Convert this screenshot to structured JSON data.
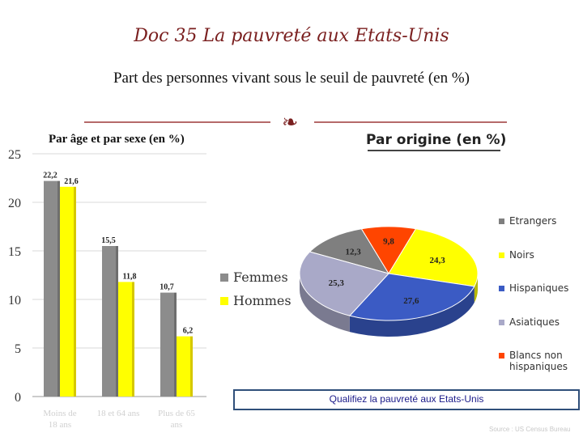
{
  "header": {
    "doc_title": "Doc 35 La pauvreté aux Etats-Unis",
    "subtitle": "Part des personnes vivant sous le seuil de pauvreté (en %)"
  },
  "colors": {
    "femmes": "#8c8c8c",
    "hommes": "#ffff00",
    "etrangers": "#7f7f7f",
    "noirs": "#ffff00",
    "hispaniques": "#3b5bc4",
    "asiatiques": "#a9a9c8",
    "blancs": "#ff4500",
    "accent": "#7a1f1f"
  },
  "icons": {
    "divider": "scroll-ornament-icon"
  },
  "question": "Qualifiez la pauvreté aux Etats-Unis",
  "source": "Source : US Census Bureau",
  "chart_data": [
    {
      "type": "bar",
      "title": "Par âge et par sexe (en %)",
      "categories": [
        "Moins de 18 ans",
        "18 et 64 ans",
        "Plus de 65 ans"
      ],
      "category_labels": [
        [
          "Moins de",
          "18 ans"
        ],
        [
          "18 et 64 ans",
          ""
        ],
        [
          "Plus de 65",
          "ans"
        ]
      ],
      "series": [
        {
          "name": "Femmes",
          "values": [
            22.2,
            15.5,
            10.7
          ],
          "labels": [
            "22,2",
            "15,5",
            "10,7"
          ]
        },
        {
          "name": "Hommes",
          "values": [
            21.6,
            11.8,
            6.2
          ],
          "labels": [
            "21,6",
            "11,8",
            "6,2"
          ]
        }
      ],
      "yticks": [
        "0",
        "5",
        "10",
        "15",
        "20",
        "25"
      ],
      "ylim": [
        0,
        25
      ],
      "grid": true,
      "legend": "right"
    },
    {
      "type": "pie",
      "title": "Par origine (en %)",
      "slices": [
        {
          "name": "Etrangers",
          "value": 12.3,
          "label": "12,3"
        },
        {
          "name": "Blancs non hispaniques",
          "value": 9.8,
          "label": "9,8"
        },
        {
          "name": "Noirs",
          "value": 24.3,
          "label": "24,3"
        },
        {
          "name": "Hispaniques",
          "value": 27.6,
          "label": "27,6"
        },
        {
          "name": "Asiatiques",
          "value": 25.3,
          "label": "25,3"
        }
      ],
      "legend_order": [
        "Etrangers",
        "Noirs",
        "Hispaniques",
        "Asiatiques",
        "Blancs non hispaniques"
      ],
      "legend_lines": [
        [
          "Etrangers"
        ],
        [
          "Noirs"
        ],
        [
          "Hispaniques"
        ],
        [
          "Asiatiques"
        ],
        [
          "Blancs non",
          "hispaniques"
        ]
      ],
      "legend": "right"
    }
  ]
}
